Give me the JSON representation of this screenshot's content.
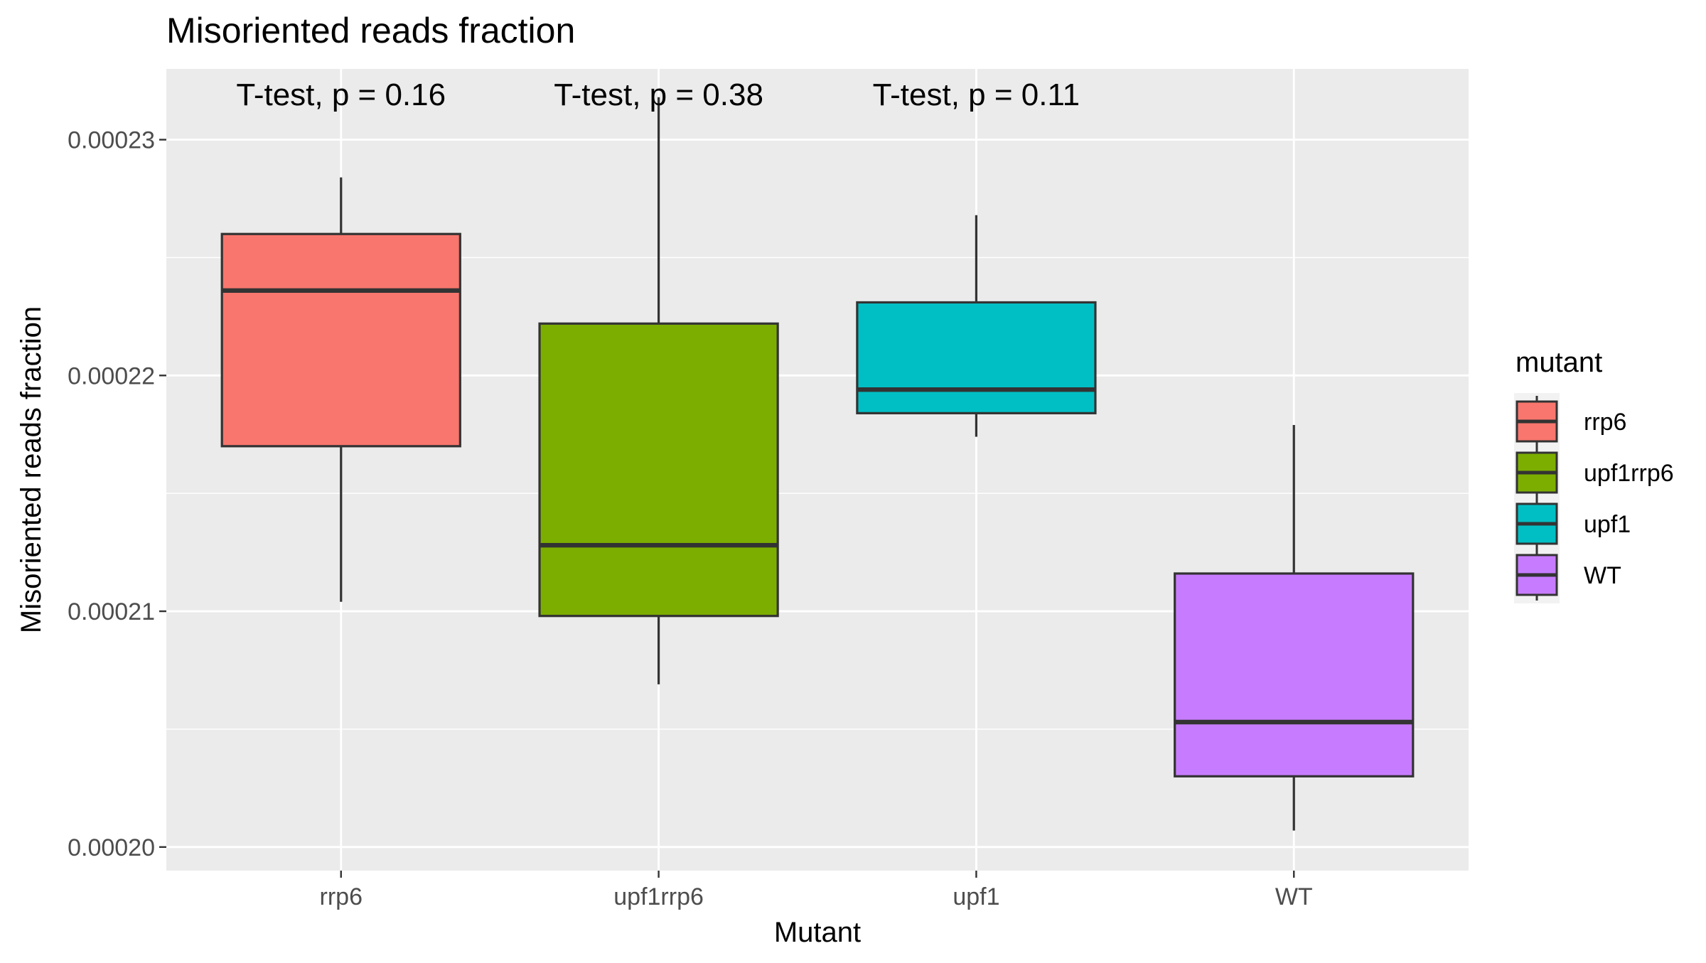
{
  "chart_data": {
    "type": "boxplot",
    "title": "Misoriented reads fraction",
    "xlabel": "Mutant",
    "ylabel": "Misoriented reads fraction",
    "categories": [
      "rrp6",
      "upf1rrp6",
      "upf1",
      "WT"
    ],
    "ylim": [
      0.000199,
      0.000233
    ],
    "yticks": [
      "0.00020",
      "0.00021",
      "0.00022",
      "0.00023"
    ],
    "ytick_values": [
      0.0002,
      0.00021,
      0.00022,
      0.00023
    ],
    "grid": true,
    "legend": {
      "title": "mutant",
      "position": "right",
      "entries": [
        "rrp6",
        "upf1rrp6",
        "upf1",
        "WT"
      ]
    },
    "boxes": [
      {
        "category": "rrp6",
        "whisker_low": 0.0002104,
        "q1": 0.000217,
        "median": 0.0002236,
        "q3": 0.000226,
        "whisker_high": 0.0002284,
        "color": "#F8766D"
      },
      {
        "category": "upf1rrp6",
        "whisker_low": 0.0002069,
        "q1": 0.0002098,
        "median": 0.0002128,
        "q3": 0.0002222,
        "whisker_high": 0.0002318,
        "color": "#7CAE00"
      },
      {
        "category": "upf1",
        "whisker_low": 0.0002174,
        "q1": 0.0002184,
        "median": 0.0002194,
        "q3": 0.0002231,
        "whisker_high": 0.0002268,
        "color": "#00BFC4"
      },
      {
        "category": "WT",
        "whisker_low": 0.0002007,
        "q1": 0.000203,
        "median": 0.0002053,
        "q3": 0.0002116,
        "whisker_high": 0.0002179,
        "color": "#C77CFF"
      }
    ],
    "annotations": [
      "T-test, p = 0.16",
      "T-test, p = 0.38",
      "T-test, p = 0.11"
    ]
  }
}
